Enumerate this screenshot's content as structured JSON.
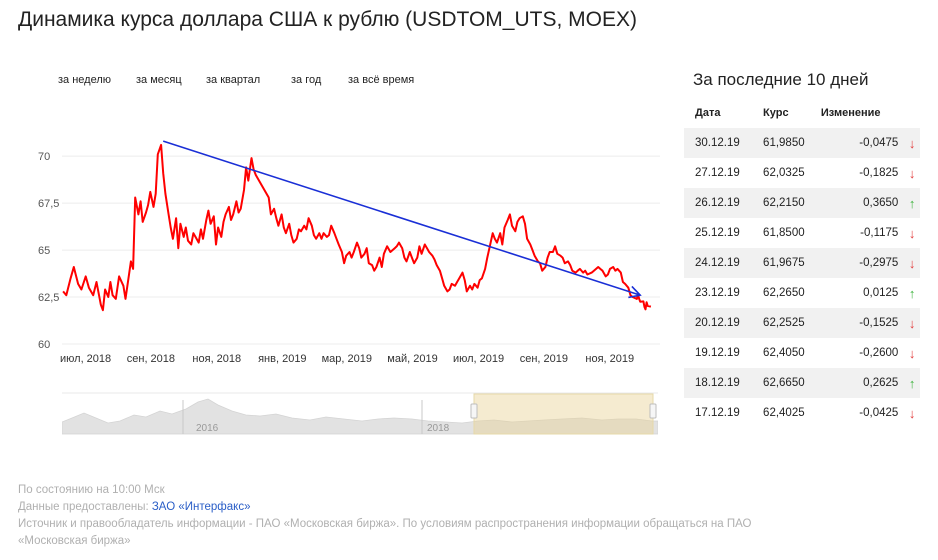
{
  "title": "Динамика курса доллара США к рублю (USDTOM_UTS, MOEX)",
  "periods": [
    "за неделю",
    "за месяц",
    "за квартал",
    "за год",
    "за всё время"
  ],
  "side": {
    "title": "За последние 10 дней",
    "headers": [
      "Дата",
      "Курс",
      "Изменение"
    ],
    "rows": [
      {
        "date": "30.12.19",
        "rate": "61,9850",
        "change": "-0,0475",
        "dir": "down"
      },
      {
        "date": "27.12.19",
        "rate": "62,0325",
        "change": "-0,1825",
        "dir": "down"
      },
      {
        "date": "26.12.19",
        "rate": "62,2150",
        "change": "0,3650",
        "dir": "up"
      },
      {
        "date": "25.12.19",
        "rate": "61,8500",
        "change": "-0,1175",
        "dir": "down"
      },
      {
        "date": "24.12.19",
        "rate": "61,9675",
        "change": "-0,2975",
        "dir": "down"
      },
      {
        "date": "23.12.19",
        "rate": "62,2650",
        "change": "0,0125",
        "dir": "up"
      },
      {
        "date": "20.12.19",
        "rate": "62,2525",
        "change": "-0,1525",
        "dir": "down"
      },
      {
        "date": "19.12.19",
        "rate": "62,4050",
        "change": "-0,2600",
        "dir": "down"
      },
      {
        "date": "18.12.19",
        "rate": "62,6650",
        "change": "0,2625",
        "dir": "up"
      },
      {
        "date": "17.12.19",
        "rate": "62,4025",
        "change": "-0,0425",
        "dir": "down"
      }
    ]
  },
  "footer": {
    "status": "По состоянию на 10:00 Мск",
    "provided_prefix": "Данные предоставлены: ",
    "provided_link": "ЗАО «Интерфакс»",
    "source_line1": "Источник и правообладатель информации - ПАО «Московская биржа». По условиям распространения информации обращаться на ПАО",
    "source_line2": "«Московская биржа»"
  },
  "colors": {
    "line": "#ff0000",
    "trend": "#1a2fd6",
    "up": "#3fb33f",
    "down": "#e23b3b",
    "link": "#2a5ec7"
  },
  "navigator": {
    "labels": [
      "2016",
      "2018"
    ],
    "selected_range": [
      "2018-07",
      "2019-12"
    ]
  },
  "chart_data": {
    "type": "line",
    "title": "",
    "ylim": [
      60,
      71.5
    ],
    "yticks": [
      60,
      62.5,
      65,
      67.5,
      70
    ],
    "ytick_labels": [
      "60",
      "62,5",
      "65",
      "67,5",
      "70"
    ],
    "xlim": [
      "2018-07-01",
      "2019-12-31"
    ],
    "xticks": [
      {
        "date": "2018-07-01",
        "label": "июл, 2018"
      },
      {
        "date": "2018-09-01",
        "label": "сен, 2018"
      },
      {
        "date": "2018-11-01",
        "label": "ноя, 2018"
      },
      {
        "date": "2019-01-01",
        "label": "янв, 2019"
      },
      {
        "date": "2019-03-01",
        "label": "мар, 2019"
      },
      {
        "date": "2019-05-01",
        "label": "май, 2019"
      },
      {
        "date": "2019-07-01",
        "label": "июл, 2019"
      },
      {
        "date": "2019-09-01",
        "label": "сен, 2019"
      },
      {
        "date": "2019-11-01",
        "label": "ноя, 2019"
      }
    ],
    "grid": "horizontal",
    "series": [
      {
        "points": [
          [
            "2018-07-02",
            62.8
          ],
          [
            "2018-07-05",
            62.6
          ],
          [
            "2018-07-09",
            63.5
          ],
          [
            "2018-07-12",
            64.1
          ],
          [
            "2018-07-16",
            63.2
          ],
          [
            "2018-07-19",
            62.9
          ],
          [
            "2018-07-23",
            63.6
          ],
          [
            "2018-07-26",
            63.0
          ],
          [
            "2018-07-30",
            62.6
          ],
          [
            "2018-08-02",
            63.3
          ],
          [
            "2018-08-06",
            62.1
          ],
          [
            "2018-08-08",
            61.8
          ],
          [
            "2018-08-10",
            62.9
          ],
          [
            "2018-08-13",
            62.5
          ],
          [
            "2018-08-15",
            63.3
          ],
          [
            "2018-08-17",
            62.6
          ],
          [
            "2018-08-20",
            62.4
          ],
          [
            "2018-08-23",
            63.6
          ],
          [
            "2018-08-27",
            63.1
          ],
          [
            "2018-08-29",
            62.4
          ],
          [
            "2018-09-03",
            64.4
          ],
          [
            "2018-09-05",
            64.0
          ],
          [
            "2018-09-07",
            67.8
          ],
          [
            "2018-09-10",
            66.9
          ],
          [
            "2018-09-12",
            67.6
          ],
          [
            "2018-09-14",
            66.5
          ],
          [
            "2018-09-17",
            67.0
          ],
          [
            "2018-09-19",
            67.4
          ],
          [
            "2018-09-21",
            68.1
          ],
          [
            "2018-09-24",
            67.3
          ],
          [
            "2018-09-26",
            68.0
          ],
          [
            "2018-09-28",
            70.1
          ],
          [
            "2018-10-01",
            70.6
          ],
          [
            "2018-10-03",
            69.1
          ],
          [
            "2018-10-05",
            68.0
          ],
          [
            "2018-10-08",
            66.9
          ],
          [
            "2018-10-10",
            66.2
          ],
          [
            "2018-10-12",
            65.6
          ],
          [
            "2018-10-15",
            66.7
          ],
          [
            "2018-10-17",
            65.1
          ],
          [
            "2018-10-19",
            66.4
          ],
          [
            "2018-10-22",
            65.7
          ],
          [
            "2018-10-24",
            66.2
          ],
          [
            "2018-10-26",
            65.5
          ],
          [
            "2018-10-29",
            65.3
          ],
          [
            "2018-10-31",
            65.9
          ],
          [
            "2018-11-02",
            65.7
          ],
          [
            "2018-11-05",
            65.4
          ],
          [
            "2018-11-07",
            66.1
          ],
          [
            "2018-11-09",
            65.6
          ],
          [
            "2018-11-12",
            66.6
          ],
          [
            "2018-11-14",
            67.1
          ],
          [
            "2018-11-16",
            66.4
          ],
          [
            "2018-11-19",
            66.8
          ],
          [
            "2018-11-21",
            65.3
          ],
          [
            "2018-11-23",
            66.2
          ],
          [
            "2018-11-26",
            65.7
          ],
          [
            "2018-11-28",
            66.5
          ],
          [
            "2018-11-30",
            66.9
          ],
          [
            "2018-12-03",
            67.3
          ],
          [
            "2018-12-05",
            66.6
          ],
          [
            "2018-12-07",
            66.9
          ],
          [
            "2018-12-10",
            67.6
          ],
          [
            "2018-12-12",
            67.0
          ],
          [
            "2018-12-14",
            67.2
          ],
          [
            "2018-12-17",
            68.2
          ],
          [
            "2018-12-19",
            69.4
          ],
          [
            "2018-12-21",
            68.7
          ],
          [
            "2018-12-24",
            69.9
          ],
          [
            "2018-12-26",
            69.3
          ],
          [
            "2018-12-28",
            69.0
          ],
          [
            "2019-01-09",
            67.8
          ],
          [
            "2019-01-11",
            66.9
          ],
          [
            "2019-01-14",
            67.2
          ],
          [
            "2019-01-16",
            66.7
          ],
          [
            "2019-01-18",
            66.3
          ],
          [
            "2019-01-21",
            66.9
          ],
          [
            "2019-01-23",
            66.2
          ],
          [
            "2019-01-25",
            65.9
          ],
          [
            "2019-01-28",
            66.4
          ],
          [
            "2019-01-30",
            65.8
          ],
          [
            "2019-02-01",
            65.4
          ],
          [
            "2019-02-04",
            65.6
          ],
          [
            "2019-02-06",
            66.1
          ],
          [
            "2019-02-08",
            66.0
          ],
          [
            "2019-02-11",
            66.3
          ],
          [
            "2019-02-13",
            66.1
          ],
          [
            "2019-02-15",
            66.7
          ],
          [
            "2019-02-18",
            66.3
          ],
          [
            "2019-02-20",
            65.8
          ],
          [
            "2019-02-22",
            65.6
          ],
          [
            "2019-02-25",
            65.9
          ],
          [
            "2019-02-27",
            65.6
          ],
          [
            "2019-03-01",
            65.9
          ],
          [
            "2019-03-04",
            65.7
          ],
          [
            "2019-03-06",
            65.8
          ],
          [
            "2019-03-08",
            66.3
          ],
          [
            "2019-03-11",
            65.9
          ],
          [
            "2019-03-13",
            65.6
          ],
          [
            "2019-03-15",
            65.3
          ],
          [
            "2019-03-18",
            64.9
          ],
          [
            "2019-03-20",
            64.3
          ],
          [
            "2019-03-22",
            64.7
          ],
          [
            "2019-03-25",
            64.9
          ],
          [
            "2019-03-27",
            64.6
          ],
          [
            "2019-03-29",
            64.9
          ],
          [
            "2019-04-01",
            65.4
          ],
          [
            "2019-04-03",
            65.1
          ],
          [
            "2019-04-05",
            64.6
          ],
          [
            "2019-04-08",
            64.8
          ],
          [
            "2019-04-10",
            65.1
          ],
          [
            "2019-04-12",
            64.3
          ],
          [
            "2019-04-15",
            64.2
          ],
          [
            "2019-04-17",
            63.9
          ],
          [
            "2019-04-19",
            64.1
          ],
          [
            "2019-04-22",
            64.6
          ],
          [
            "2019-04-24",
            64.1
          ],
          [
            "2019-04-26",
            64.8
          ],
          [
            "2019-04-29",
            65.2
          ],
          [
            "2019-05-02",
            64.9
          ],
          [
            "2019-05-06",
            65.1
          ],
          [
            "2019-05-08",
            65.2
          ],
          [
            "2019-05-10",
            65.4
          ],
          [
            "2019-05-13",
            65.1
          ],
          [
            "2019-05-15",
            64.6
          ],
          [
            "2019-05-17",
            64.4
          ],
          [
            "2019-05-20",
            64.9
          ],
          [
            "2019-05-22",
            64.6
          ],
          [
            "2019-05-24",
            64.3
          ],
          [
            "2019-05-27",
            64.6
          ],
          [
            "2019-05-29",
            65.2
          ],
          [
            "2019-05-31",
            64.8
          ],
          [
            "2019-06-03",
            65.3
          ],
          [
            "2019-06-05",
            65.1
          ],
          [
            "2019-06-07",
            64.9
          ],
          [
            "2019-06-10",
            64.7
          ],
          [
            "2019-06-12",
            64.5
          ],
          [
            "2019-06-14",
            64.2
          ],
          [
            "2019-06-17",
            63.9
          ],
          [
            "2019-06-19",
            63.5
          ],
          [
            "2019-06-21",
            63.1
          ],
          [
            "2019-06-24",
            62.8
          ],
          [
            "2019-06-26",
            62.9
          ],
          [
            "2019-06-28",
            63.2
          ],
          [
            "2019-07-01",
            63.1
          ],
          [
            "2019-07-03",
            63.3
          ],
          [
            "2019-07-05",
            63.5
          ],
          [
            "2019-07-08",
            63.8
          ],
          [
            "2019-07-10",
            63.4
          ],
          [
            "2019-07-12",
            62.8
          ],
          [
            "2019-07-15",
            63.1
          ],
          [
            "2019-07-17",
            62.9
          ],
          [
            "2019-07-19",
            63.2
          ],
          [
            "2019-07-22",
            63.0
          ],
          [
            "2019-07-24",
            63.4
          ],
          [
            "2019-07-26",
            63.5
          ],
          [
            "2019-07-29",
            64.0
          ],
          [
            "2019-07-31",
            64.6
          ],
          [
            "2019-08-02",
            65.1
          ],
          [
            "2019-08-05",
            65.9
          ],
          [
            "2019-08-07",
            65.6
          ],
          [
            "2019-08-09",
            65.4
          ],
          [
            "2019-08-12",
            65.9
          ],
          [
            "2019-08-14",
            65.3
          ],
          [
            "2019-08-16",
            66.2
          ],
          [
            "2019-08-19",
            66.6
          ],
          [
            "2019-08-21",
            66.9
          ],
          [
            "2019-08-23",
            66.3
          ],
          [
            "2019-08-26",
            66.0
          ],
          [
            "2019-08-28",
            66.5
          ],
          [
            "2019-08-30",
            66.7
          ],
          [
            "2019-09-02",
            66.8
          ],
          [
            "2019-09-04",
            66.4
          ],
          [
            "2019-09-06",
            65.6
          ],
          [
            "2019-09-09",
            65.3
          ],
          [
            "2019-09-11",
            65.0
          ],
          [
            "2019-09-13",
            64.7
          ],
          [
            "2019-09-16",
            64.4
          ],
          [
            "2019-09-18",
            64.3
          ],
          [
            "2019-09-20",
            63.9
          ],
          [
            "2019-09-23",
            64.1
          ],
          [
            "2019-09-25",
            64.6
          ],
          [
            "2019-09-27",
            64.9
          ],
          [
            "2019-09-30",
            64.9
          ],
          [
            "2019-10-02",
            65.2
          ],
          [
            "2019-10-04",
            64.8
          ],
          [
            "2019-10-07",
            64.7
          ],
          [
            "2019-10-09",
            64.6
          ],
          [
            "2019-10-11",
            64.3
          ],
          [
            "2019-10-14",
            64.4
          ],
          [
            "2019-10-16",
            64.2
          ],
          [
            "2019-10-18",
            63.9
          ],
          [
            "2019-10-21",
            63.8
          ],
          [
            "2019-10-23",
            63.9
          ],
          [
            "2019-10-25",
            64.0
          ],
          [
            "2019-10-28",
            63.8
          ],
          [
            "2019-10-30",
            63.9
          ],
          [
            "2019-11-01",
            63.7
          ],
          [
            "2019-11-05",
            63.8
          ],
          [
            "2019-11-07",
            63.9
          ],
          [
            "2019-11-11",
            64.1
          ],
          [
            "2019-11-13",
            64.0
          ],
          [
            "2019-11-15",
            63.9
          ],
          [
            "2019-11-18",
            63.6
          ],
          [
            "2019-11-20",
            63.7
          ],
          [
            "2019-11-22",
            64.0
          ],
          [
            "2019-11-25",
            64.1
          ],
          [
            "2019-11-27",
            63.9
          ],
          [
            "2019-11-29",
            64.0
          ],
          [
            "2019-12-02",
            63.8
          ],
          [
            "2019-12-04",
            63.3
          ],
          [
            "2019-12-06",
            63.2
          ],
          [
            "2019-12-09",
            63.0
          ],
          [
            "2019-12-11",
            62.6
          ],
          [
            "2019-12-13",
            62.5
          ],
          [
            "2019-12-17",
            62.4
          ],
          [
            "2019-12-18",
            62.67
          ],
          [
            "2019-12-19",
            62.41
          ],
          [
            "2019-12-20",
            62.25
          ],
          [
            "2019-12-23",
            62.27
          ],
          [
            "2019-12-24",
            61.97
          ],
          [
            "2019-12-25",
            61.85
          ],
          [
            "2019-12-26",
            62.22
          ],
          [
            "2019-12-27",
            62.03
          ],
          [
            "2019-12-30",
            61.99
          ]
        ]
      }
    ],
    "annotations": [
      {
        "type": "arrow",
        "color": "#1a2fd6",
        "from": [
          "2018-10-03",
          70.8
        ],
        "to": [
          "2019-12-20",
          62.6
        ]
      }
    ]
  }
}
